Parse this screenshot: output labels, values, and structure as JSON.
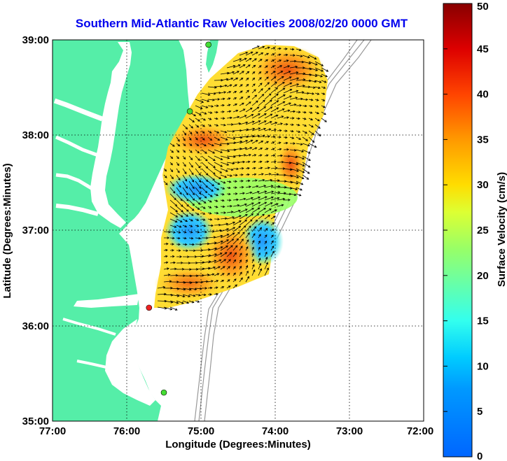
{
  "title": "Southern Mid-Atlantic Raw Velocities 2008/02/20 0000 GMT",
  "map": {
    "xlabel": "Longitude (Degrees:Minutes)",
    "ylabel": "Latitude (Degrees:Minutes)",
    "lon_range": [
      -77,
      -72
    ],
    "lat_range": [
      35,
      39
    ],
    "x_ticks": [
      "77:00",
      "76:00",
      "75:00",
      "74:00",
      "73:00",
      "72:00"
    ],
    "y_ticks": [
      "35:00",
      "36:00",
      "37:00",
      "38:00",
      "39:00"
    ],
    "grid": "dotted",
    "land_color": "#55eea8",
    "water_color": "#ffffff",
    "sites": [
      {
        "lon": -74.9,
        "lat": 38.95,
        "color": "#44dd33"
      },
      {
        "lon": -75.15,
        "lat": 38.25,
        "color": "#44dd33"
      },
      {
        "lon": -75.7,
        "lat": 36.19,
        "color": "#ee2222"
      },
      {
        "lon": -75.5,
        "lat": 35.3,
        "color": "#44dd33"
      }
    ]
  },
  "colorbar": {
    "label": "Surface Velocity (cm/s)",
    "min": 0,
    "max": 50,
    "ticks": [
      "0",
      "5",
      "10",
      "15",
      "20",
      "25",
      "30",
      "35",
      "40",
      "45",
      "50"
    ],
    "colormap": "jet"
  }
}
